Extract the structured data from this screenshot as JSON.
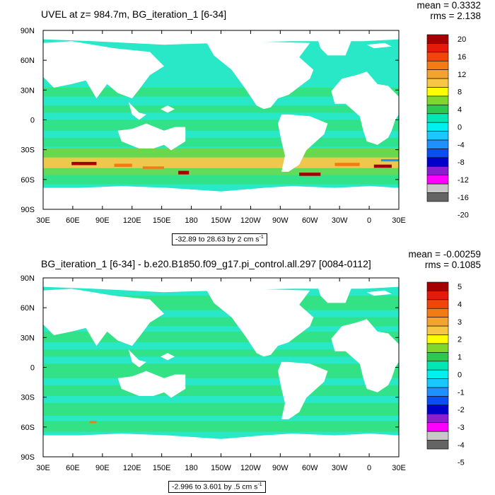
{
  "chart_data": [
    {
      "type": "heatmap",
      "title": "UVEL at z= 984.7m, BG_iteration_1 [6-34]",
      "stats": {
        "mean": "mean = 0.3332",
        "rms": "rms = 2.138"
      },
      "x_ticks": [
        "30E",
        "60E",
        "90E",
        "120E",
        "150E",
        "180",
        "150W",
        "120W",
        "90W",
        "60W",
        "30W",
        "0",
        "30E"
      ],
      "y_ticks": [
        "90N",
        "60N",
        "30N",
        "0",
        "30S",
        "60S",
        "90S"
      ],
      "colorbar": {
        "labels": [
          "20",
          "16",
          "12",
          "8",
          "4",
          "0",
          "-4",
          "-8",
          "-12",
          "-16",
          "-20"
        ],
        "colors": [
          "#a50000",
          "#e61a0a",
          "#f2450a",
          "#f47a14",
          "#f4a330",
          "#f8c646",
          "#fffe00",
          "#7fd62c",
          "#2dc850",
          "#00e6b4",
          "#00f0f0",
          "#18c8ff",
          "#1e90ff",
          "#0a50f0",
          "#0000c8",
          "#8c1ed2",
          "#ff00ff",
          "#c8c8c8",
          "#646464"
        ]
      },
      "range_text": "-32.89 to 28.63 by 2 cm s",
      "units_sup": "-1",
      "palette": {
        "ocean": "#28e8c8",
        "band_a": "#34e078",
        "band_b": "#70d640",
        "hot1": "#f8c646",
        "hot2": "#f47a14",
        "hot3": "#a50000",
        "cold": "#1e90ff"
      }
    },
    {
      "type": "heatmap",
      "title": "BG_iteration_1 [6-34] - b.e20.B1850.f09_g17.pi_control.all.297 [0084-0112]",
      "stats": {
        "mean": "mean = -0.00259",
        "rms": "rms = 0.1085"
      },
      "x_ticks": [
        "30E",
        "60E",
        "90E",
        "120E",
        "150E",
        "180",
        "150W",
        "120W",
        "90W",
        "60W",
        "30W",
        "0",
        "30E"
      ],
      "y_ticks": [
        "90N",
        "60N",
        "30N",
        "0",
        "30S",
        "60S",
        "90S"
      ],
      "colorbar": {
        "labels": [
          "5",
          "4",
          "3",
          "2",
          "1",
          "0",
          "-1",
          "-2",
          "-3",
          "-4",
          "-5"
        ],
        "colors": [
          "#a50000",
          "#e61a0a",
          "#f2450a",
          "#f47a14",
          "#f4a330",
          "#f8c646",
          "#fffe00",
          "#7fd62c",
          "#2dc850",
          "#00e6b4",
          "#00f0f0",
          "#18c8ff",
          "#1e90ff",
          "#0a50f0",
          "#0000c8",
          "#8c1ed2",
          "#ff00ff",
          "#c8c8c8",
          "#646464"
        ]
      },
      "range_text": "-2.996 to 3.601 by .5 cm s",
      "units_sup": "-1",
      "palette": {
        "ocean": "#28e8c8",
        "band_a": "#34e078",
        "band_b": "#70d640",
        "hot1": "#f8c646",
        "hot2": "#f47a14",
        "hot3": "#a50000",
        "cold": "#1e90ff"
      }
    }
  ]
}
